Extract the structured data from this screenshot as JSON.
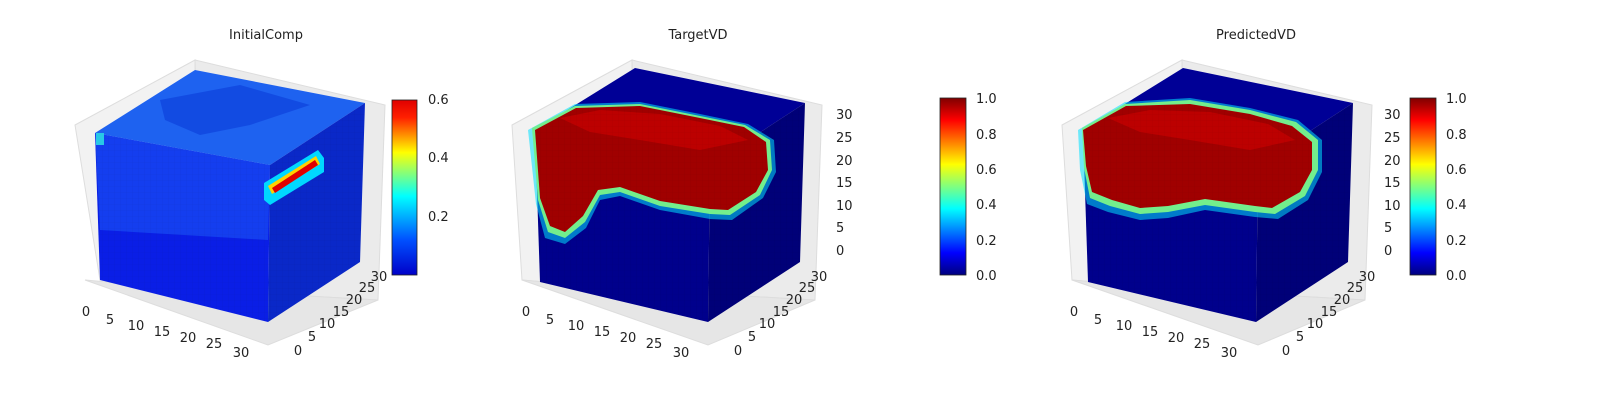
{
  "figure": {
    "background": "#ffffff"
  },
  "chart_data": [
    {
      "type": "heatmap",
      "subtype": "3d-voxel-cube",
      "title": "InitialComp",
      "colormap": "jet",
      "x_ticks": [
        "0",
        "5",
        "10",
        "15",
        "20",
        "25",
        "30"
      ],
      "y_ticks": [
        "0",
        "5",
        "10",
        "15",
        "20",
        "25",
        "30"
      ],
      "z_ticks": [],
      "colorbar": {
        "range": [
          0.02,
          0.6
        ],
        "ticks": [
          "0.2",
          "0.4",
          "0.6"
        ],
        "tick_values": [
          0.2,
          0.4,
          0.6
        ]
      },
      "volume": {
        "base_value": 0.08,
        "top_face_mean": 0.12,
        "hot_streak_value": 0.5
      }
    },
    {
      "type": "heatmap",
      "subtype": "3d-voxel-cube",
      "title": "TargetVD",
      "colormap": "jet",
      "x_ticks": [
        "0",
        "5",
        "10",
        "15",
        "20",
        "25",
        "30"
      ],
      "y_ticks": [
        "0",
        "5",
        "10",
        "15",
        "20",
        "25",
        "30"
      ],
      "z_ticks": [
        "0",
        "5",
        "10",
        "15",
        "20",
        "25",
        "30"
      ],
      "colorbar": {
        "range": [
          0.0,
          1.0
        ],
        "ticks": [
          "0.0",
          "0.2",
          "0.4",
          "0.6",
          "0.8",
          "1.0"
        ],
        "tick_values": [
          0,
          0.2,
          0.4,
          0.6,
          0.8,
          1.0
        ]
      },
      "volume": {
        "background_value": 0.0,
        "region_value": 1.0
      }
    },
    {
      "type": "heatmap",
      "subtype": "3d-voxel-cube",
      "title": "PredictedVD",
      "colormap": "jet",
      "x_ticks": [
        "0",
        "5",
        "10",
        "15",
        "20",
        "25",
        "30"
      ],
      "y_ticks": [
        "0",
        "5",
        "10",
        "15",
        "20",
        "25",
        "30"
      ],
      "z_ticks": [
        "0",
        "5",
        "10",
        "15",
        "20",
        "25",
        "30"
      ],
      "colorbar": {
        "range": [
          0.0,
          1.0
        ],
        "ticks": [
          "0.0",
          "0.2",
          "0.4",
          "0.6",
          "0.8",
          "1.0"
        ],
        "tick_values": [
          0,
          0.2,
          0.4,
          0.6,
          0.8,
          1.0
        ]
      },
      "volume": {
        "background_value": 0.0,
        "region_value": 1.0
      }
    }
  ]
}
